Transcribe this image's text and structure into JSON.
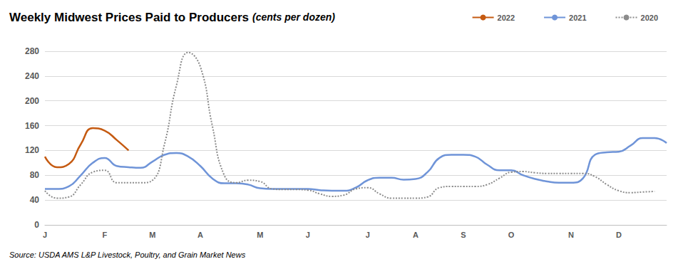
{
  "chart_data": {
    "type": "line",
    "title": "Weekly Midwest Prices Paid to Producers",
    "subtitle": "(cents per dozen)",
    "source": "Source: USDA AMS L&P Livestock, Poultry, and Grain Market News",
    "categories": [
      "J",
      null,
      null,
      null,
      null,
      "F",
      null,
      null,
      null,
      "M",
      null,
      null,
      null,
      "A",
      null,
      null,
      null,
      null,
      "M",
      null,
      null,
      null,
      "J",
      null,
      null,
      null,
      null,
      "J",
      null,
      null,
      null,
      "A",
      null,
      null,
      null,
      "S",
      null,
      null,
      null,
      "O",
      null,
      null,
      null,
      null,
      "N",
      null,
      null,
      null,
      "D",
      null,
      null,
      null,
      null
    ],
    "series": [
      {
        "name": "2022",
        "color": "#c55a11",
        "line_style": "solid",
        "values": [
          110,
          93,
          98,
          130,
          156,
          152,
          137,
          120,
          null,
          null,
          null,
          null,
          null,
          null,
          null,
          null,
          null,
          null,
          null,
          null,
          null,
          null,
          null,
          null,
          null,
          null,
          null,
          null,
          null,
          null,
          null,
          null,
          null,
          null,
          null,
          null,
          null,
          null,
          null,
          null,
          null,
          null,
          null,
          null,
          null,
          null,
          null,
          null,
          null,
          null,
          null,
          null,
          null
        ]
      },
      {
        "name": "2021",
        "color": "#6f94d8",
        "line_style": "solid",
        "values": [
          58,
          58,
          62,
          80,
          100,
          108,
          95,
          93,
          92,
          102,
          113,
          116,
          110,
          95,
          75,
          67,
          67,
          65,
          59,
          58,
          58,
          58,
          58,
          56,
          55,
          55,
          60,
          72,
          76,
          76,
          73,
          74,
          85,
          108,
          113,
          113,
          110,
          97,
          88,
          88,
          80,
          74,
          70,
          68,
          68,
          75,
          113,
          117,
          118,
          128,
          140,
          140,
          132
        ]
      },
      {
        "name": "2020",
        "color": "#8c8c8c",
        "line_style": "dotted",
        "values": [
          55,
          43,
          45,
          65,
          85,
          88,
          68,
          68,
          68,
          72,
          130,
          225,
          278,
          255,
          160,
          80,
          68,
          72,
          70,
          58,
          57,
          57,
          56,
          50,
          46,
          48,
          58,
          60,
          50,
          43,
          43,
          43,
          45,
          60,
          62,
          62,
          62,
          65,
          75,
          85,
          86,
          84,
          83,
          83,
          83,
          83,
          78,
          65,
          55,
          52,
          53,
          54,
          null
        ]
      }
    ],
    "ylim": [
      0,
      280
    ],
    "yticks": [
      0,
      40,
      80,
      120,
      160,
      200,
      240,
      280
    ],
    "grid": true,
    "legend": "top-right"
  }
}
